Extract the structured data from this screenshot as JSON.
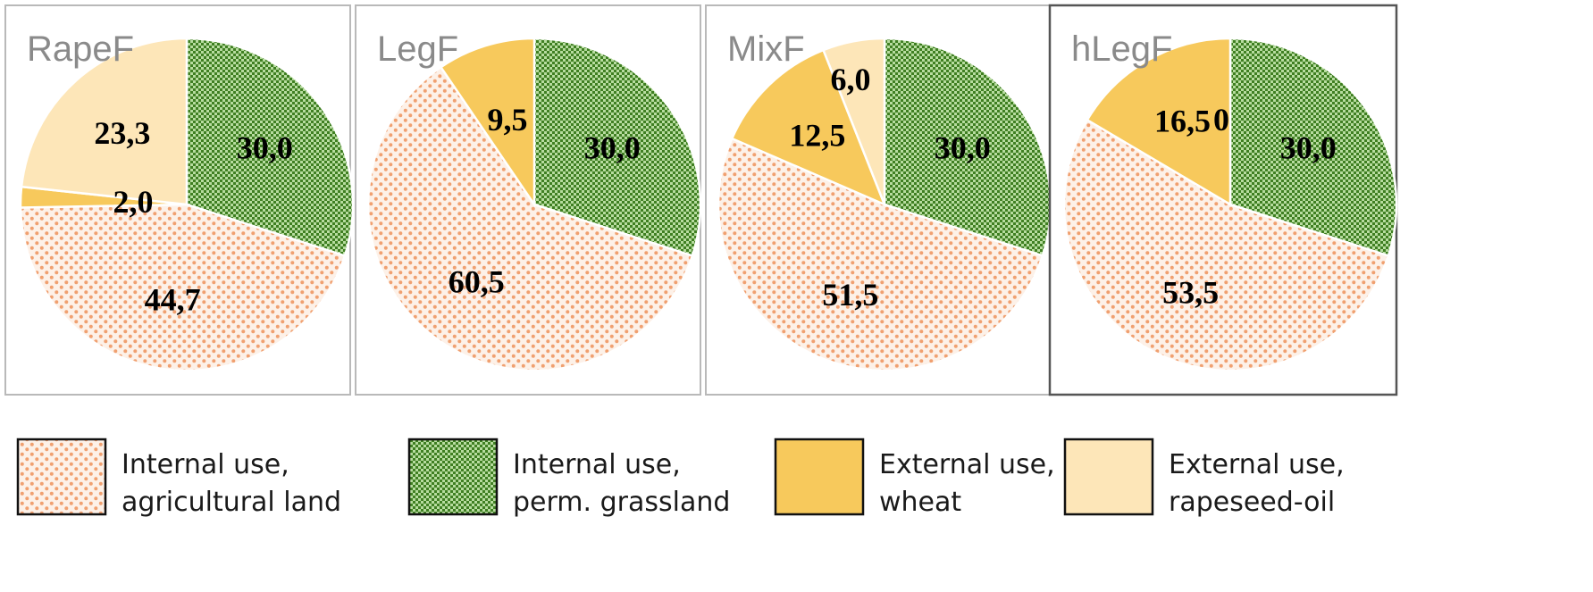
{
  "chart_data": [
    {
      "type": "pie",
      "title": "RapeF",
      "slices": [
        {
          "category": "Internal use, perm. grassland",
          "value": 30.0,
          "label": "30,0"
        },
        {
          "category": "Internal use, agricultural land",
          "value": 44.7,
          "label": "44,7"
        },
        {
          "category": "External use, wheat",
          "value": 2.0,
          "label": "2,0"
        },
        {
          "category": "External use, rapeseed-oil",
          "value": 23.3,
          "label": "23,3"
        }
      ]
    },
    {
      "type": "pie",
      "title": "LegF",
      "slices": [
        {
          "category": "Internal use, perm. grassland",
          "value": 30.0,
          "label": "30,0"
        },
        {
          "category": "Internal use, agricultural land",
          "value": 60.5,
          "label": "60,5"
        },
        {
          "category": "External use, wheat",
          "value": 9.5,
          "label": "9,5"
        }
      ]
    },
    {
      "type": "pie",
      "title": "MixF",
      "slices": [
        {
          "category": "Internal use, perm. grassland",
          "value": 30.0,
          "label": "30,0"
        },
        {
          "category": "Internal use, agricultural land",
          "value": 51.5,
          "label": "51,5"
        },
        {
          "category": "External use, wheat",
          "value": 12.5,
          "label": "12,5"
        },
        {
          "category": "External use, rapeseed-oil",
          "value": 6.0,
          "label": "6,0"
        }
      ]
    },
    {
      "type": "pie",
      "title": "hLegF",
      "slices": [
        {
          "category": "Internal use, perm. grassland",
          "value": 30.0,
          "label": "30,0"
        },
        {
          "category": "Internal use, agricultural land",
          "value": 53.5,
          "label": "53,5"
        },
        {
          "category": "External use, wheat",
          "value": 16.5,
          "label": "16,5"
        },
        {
          "category": "External use, rapeseed-oil",
          "value": 0,
          "label": "0"
        }
      ]
    }
  ],
  "legend": [
    {
      "category": "Internal use, agricultural land",
      "line1": "Internal use,",
      "line2": "agricultural land",
      "fill": "dots",
      "color": "#f0a97a"
    },
    {
      "category": "Internal use, perm. grassland",
      "line1": "Internal use,",
      "line2": "perm. grassland",
      "fill": "checker",
      "color": "#4f8f30"
    },
    {
      "category": "External use, wheat",
      "line1": "External use,",
      "line2": "wheat",
      "fill": "solid",
      "color": "#f7c95c"
    },
    {
      "category": "External use, rapeseed-oil",
      "line1": "External use,",
      "line2": "rapeseed-oil",
      "fill": "solid",
      "color": "#fde6b8"
    }
  ]
}
